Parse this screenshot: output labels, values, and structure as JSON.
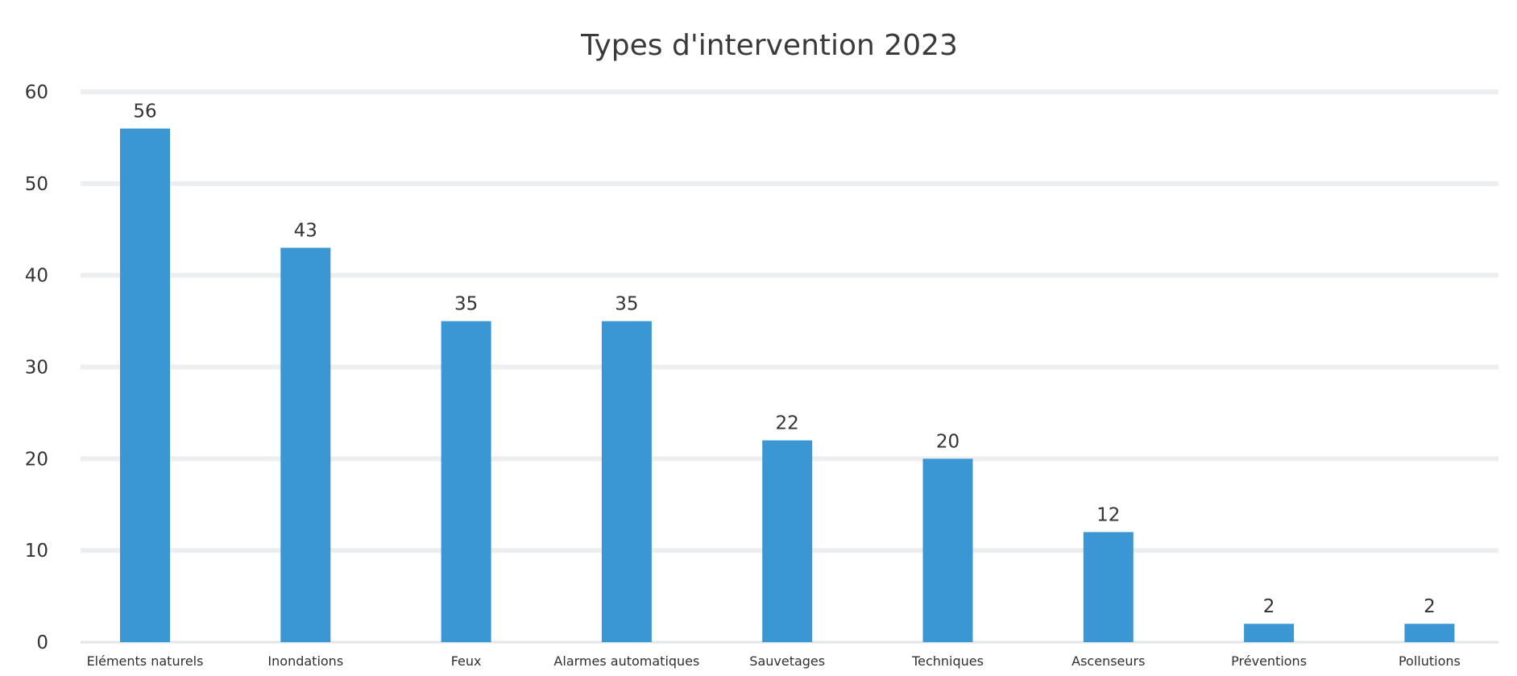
{
  "chart_data": {
    "type": "bar",
    "title": "Types d'intervention 2023",
    "xlabel": "",
    "ylabel": "",
    "categories": [
      "Eléments naturels",
      "Inondations",
      "Feux",
      "Alarmes automatiques",
      "Sauvetages",
      "Techniques",
      "Ascenseurs",
      "Préventions",
      "Pollutions"
    ],
    "series": [
      {
        "values": [
          56,
          43,
          35,
          35,
          22,
          20,
          12,
          2,
          2
        ]
      }
    ],
    "ylim": [
      0,
      60
    ],
    "yticks": [
      0,
      10,
      20,
      30,
      40,
      50,
      60
    ],
    "grid": true,
    "data_labels": true,
    "colors": {
      "bar": "#3b97d3",
      "grid": "#eceef0",
      "text": "#333333"
    }
  }
}
